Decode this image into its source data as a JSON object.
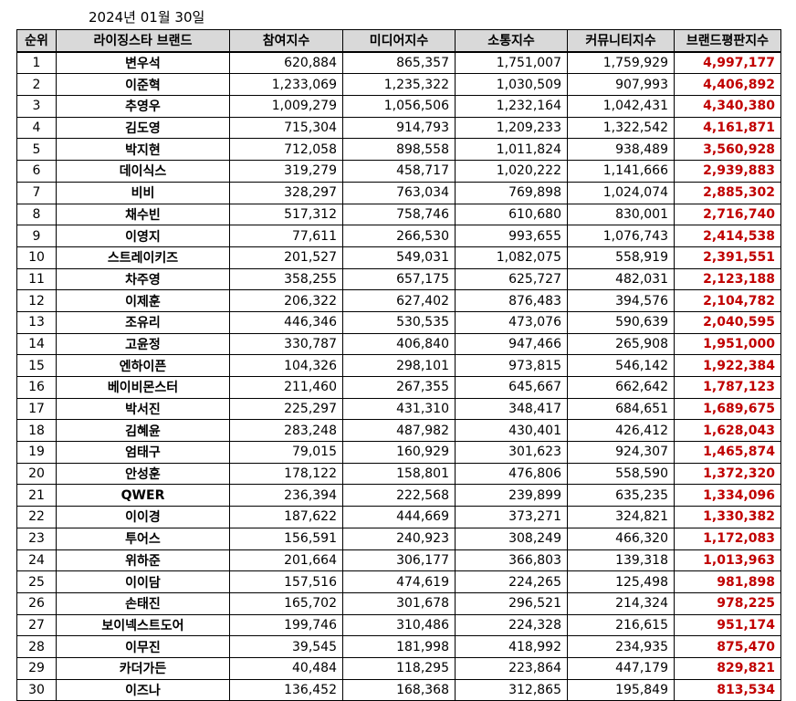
{
  "date": "2024년 01월 30일",
  "colors": {
    "header_bg": "#d9d9d9",
    "score_color": "#c00000"
  },
  "headers": [
    "순위",
    "라이징스타 브랜드",
    "참여지수",
    "미디어지수",
    "소통지수",
    "커뮤니티지수",
    "브랜드평판지수"
  ],
  "rows": [
    [
      "1",
      "변우석",
      "620,884",
      "865,357",
      "1,751,007",
      "1,759,929",
      "4,997,177"
    ],
    [
      "2",
      "이준혁",
      "1,233,069",
      "1,235,322",
      "1,030,509",
      "907,993",
      "4,406,892"
    ],
    [
      "3",
      "추영우",
      "1,009,279",
      "1,056,506",
      "1,232,164",
      "1,042,431",
      "4,340,380"
    ],
    [
      "4",
      "김도영",
      "715,304",
      "914,793",
      "1,209,233",
      "1,322,542",
      "4,161,871"
    ],
    [
      "5",
      "박지현",
      "712,058",
      "898,558",
      "1,011,824",
      "938,489",
      "3,560,928"
    ],
    [
      "6",
      "데이식스",
      "319,279",
      "458,717",
      "1,020,222",
      "1,141,666",
      "2,939,883"
    ],
    [
      "7",
      "비비",
      "328,297",
      "763,034",
      "769,898",
      "1,024,074",
      "2,885,302"
    ],
    [
      "8",
      "채수빈",
      "517,312",
      "758,746",
      "610,680",
      "830,001",
      "2,716,740"
    ],
    [
      "9",
      "이영지",
      "77,611",
      "266,530",
      "993,655",
      "1,076,743",
      "2,414,538"
    ],
    [
      "10",
      "스트레이키즈",
      "201,527",
      "549,031",
      "1,082,075",
      "558,919",
      "2,391,551"
    ],
    [
      "11",
      "차주영",
      "358,255",
      "657,175",
      "625,727",
      "482,031",
      "2,123,188"
    ],
    [
      "12",
      "이제훈",
      "206,322",
      "627,402",
      "876,483",
      "394,576",
      "2,104,782"
    ],
    [
      "13",
      "조유리",
      "446,346",
      "530,535",
      "473,076",
      "590,639",
      "2,040,595"
    ],
    [
      "14",
      "고윤정",
      "330,787",
      "406,840",
      "947,466",
      "265,908",
      "1,951,000"
    ],
    [
      "15",
      "엔하이픈",
      "104,326",
      "298,101",
      "973,815",
      "546,142",
      "1,922,384"
    ],
    [
      "16",
      "베이비몬스터",
      "211,460",
      "267,355",
      "645,667",
      "662,642",
      "1,787,123"
    ],
    [
      "17",
      "박서진",
      "225,297",
      "431,310",
      "348,417",
      "684,651",
      "1,689,675"
    ],
    [
      "18",
      "김혜윤",
      "283,248",
      "487,982",
      "430,401",
      "426,412",
      "1,628,043"
    ],
    [
      "19",
      "엄태구",
      "79,015",
      "160,929",
      "301,623",
      "924,307",
      "1,465,874"
    ],
    [
      "20",
      "안성훈",
      "178,122",
      "158,801",
      "476,806",
      "558,590",
      "1,372,320"
    ],
    [
      "21",
      "QWER",
      "236,394",
      "222,568",
      "239,899",
      "635,235",
      "1,334,096"
    ],
    [
      "22",
      "이이경",
      "187,622",
      "444,669",
      "373,271",
      "324,821",
      "1,330,382"
    ],
    [
      "23",
      "투어스",
      "156,591",
      "240,923",
      "308,249",
      "466,320",
      "1,172,083"
    ],
    [
      "24",
      "위하준",
      "201,664",
      "306,177",
      "366,803",
      "139,318",
      "1,013,963"
    ],
    [
      "25",
      "이이담",
      "157,516",
      "474,619",
      "224,265",
      "125,498",
      "981,898"
    ],
    [
      "26",
      "손태진",
      "165,702",
      "301,678",
      "296,521",
      "214,324",
      "978,225"
    ],
    [
      "27",
      "보이넥스트도어",
      "199,746",
      "310,486",
      "224,328",
      "216,615",
      "951,174"
    ],
    [
      "28",
      "이무진",
      "39,545",
      "181,998",
      "418,992",
      "234,935",
      "875,470"
    ],
    [
      "29",
      "카더가든",
      "40,484",
      "118,295",
      "223,864",
      "447,179",
      "829,821"
    ],
    [
      "30",
      "이즈나",
      "136,452",
      "168,368",
      "312,865",
      "195,849",
      "813,534"
    ]
  ]
}
